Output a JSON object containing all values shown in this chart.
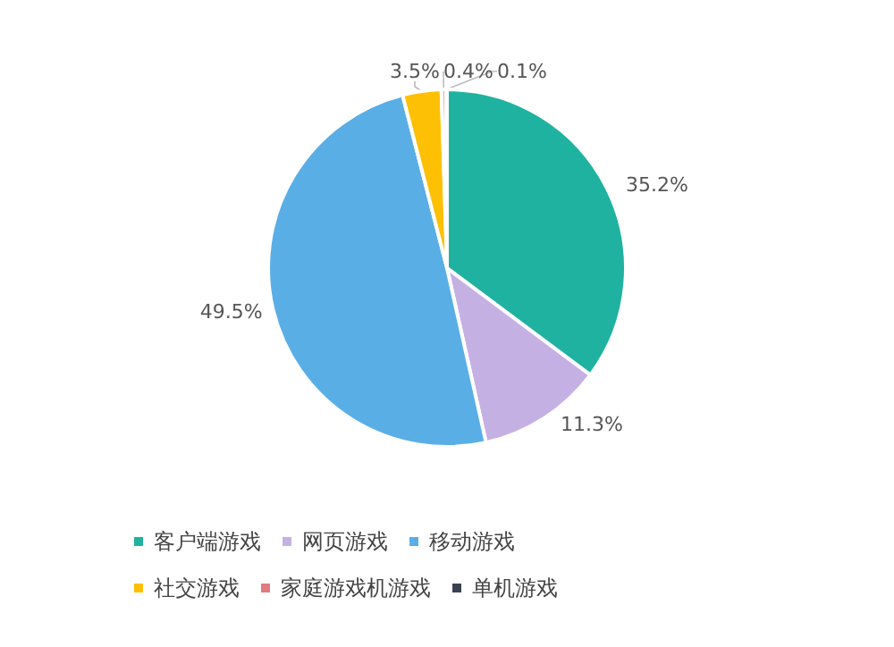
{
  "chart_data": {
    "type": "pie",
    "categories": [
      "客户端游戏",
      "网页游戏",
      "移动游戏",
      "社交游戏",
      "家庭游戏机游戏",
      "单机游戏"
    ],
    "values": [
      35.2,
      11.3,
      49.5,
      3.5,
      0.4,
      0.1
    ],
    "colors": [
      "#20b2a0",
      "#c5b0e3",
      "#5aaee6",
      "#fdc004",
      "#e07b7f",
      "#3a4150"
    ],
    "value_labels": [
      "35.2%",
      "11.3%",
      "49.5%",
      "3.5%",
      "0.4%",
      "0.1%"
    ],
    "legend": "bottom"
  }
}
